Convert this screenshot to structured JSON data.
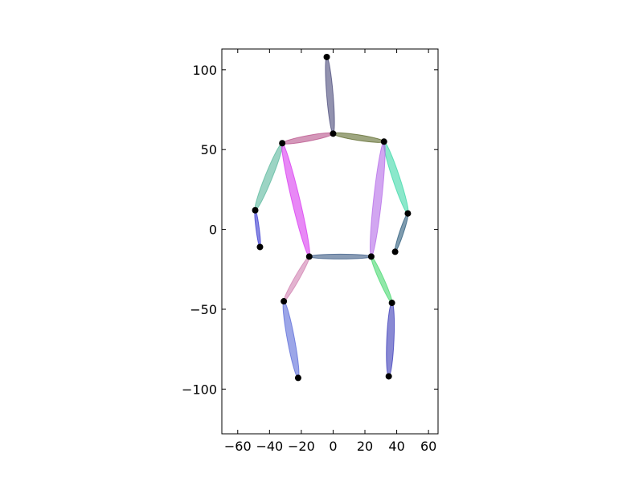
{
  "chart_data": {
    "type": "scatter",
    "title": "",
    "xlabel": "",
    "ylabel": "",
    "xlim": [
      -70,
      66
    ],
    "ylim": [
      -128,
      113
    ],
    "grid": false,
    "xticks": [
      -60,
      -40,
      -20,
      0,
      20,
      40,
      60
    ],
    "xtick_labels": [
      "−60",
      "−40",
      "−20",
      "0",
      "20",
      "40",
      "60"
    ],
    "yticks": [
      100,
      50,
      0,
      -50,
      -100
    ],
    "ytick_labels": [
      "100",
      "50",
      "0",
      "−50",
      "−100"
    ],
    "joints": [
      {
        "id": "head",
        "x": -4,
        "y": 108
      },
      {
        "id": "neck",
        "x": 0,
        "y": 60
      },
      {
        "id": "r-shoulder",
        "x": -32,
        "y": 54
      },
      {
        "id": "l-shoulder",
        "x": 32,
        "y": 55
      },
      {
        "id": "r-elbow",
        "x": -49,
        "y": 12
      },
      {
        "id": "l-elbow",
        "x": 47,
        "y": 10
      },
      {
        "id": "r-wrist",
        "x": -46,
        "y": -11
      },
      {
        "id": "l-wrist",
        "x": 39,
        "y": -14
      },
      {
        "id": "r-hip",
        "x": -15,
        "y": -17
      },
      {
        "id": "l-hip",
        "x": 24,
        "y": -17
      },
      {
        "id": "r-knee",
        "x": -31,
        "y": -45
      },
      {
        "id": "l-knee",
        "x": 37,
        "y": -46
      },
      {
        "id": "r-ankle",
        "x": -22,
        "y": -93
      },
      {
        "id": "l-ankle",
        "x": 35,
        "y": -92
      }
    ],
    "limbs": [
      {
        "name": "head-neck",
        "from": "head",
        "to": "neck",
        "color": "#4a4a7a",
        "width": 8
      },
      {
        "name": "neck-r-shoulder",
        "from": "neck",
        "to": "r-shoulder",
        "color": "#b8528a",
        "width": 7
      },
      {
        "name": "neck-l-shoulder",
        "from": "neck",
        "to": "l-shoulder",
        "color": "#5e6a2c",
        "width": 7
      },
      {
        "name": "r-upper-arm",
        "from": "r-shoulder",
        "to": "r-elbow",
        "color": "#5ab89c",
        "width": 9
      },
      {
        "name": "l-upper-arm",
        "from": "l-shoulder",
        "to": "l-elbow",
        "color": "#3ed8a8",
        "width": 9
      },
      {
        "name": "r-forearm",
        "from": "r-elbow",
        "to": "r-wrist",
        "color": "#3a3ad0",
        "width": 4
      },
      {
        "name": "l-forearm",
        "from": "l-elbow",
        "to": "l-wrist",
        "color": "#2a5a7a",
        "width": 5
      },
      {
        "name": "r-torso",
        "from": "r-shoulder",
        "to": "r-hip",
        "color": "#d838f0",
        "width": 10
      },
      {
        "name": "l-torso",
        "from": "l-shoulder",
        "to": "l-hip",
        "color": "#b46ae8",
        "width": 10
      },
      {
        "name": "pelvis",
        "from": "r-hip",
        "to": "l-hip",
        "color": "#3a5a84",
        "width": 6
      },
      {
        "name": "r-thigh",
        "from": "r-hip",
        "to": "r-knee",
        "color": "#d080b0",
        "width": 6
      },
      {
        "name": "l-thigh",
        "from": "l-hip",
        "to": "l-knee",
        "color": "#48d870",
        "width": 6
      },
      {
        "name": "r-shin",
        "from": "r-knee",
        "to": "r-ankle",
        "color": "#5a6ad8",
        "width": 9
      },
      {
        "name": "l-shin",
        "from": "l-knee",
        "to": "l-ankle",
        "color": "#3a3ab8",
        "width": 9
      }
    ]
  }
}
